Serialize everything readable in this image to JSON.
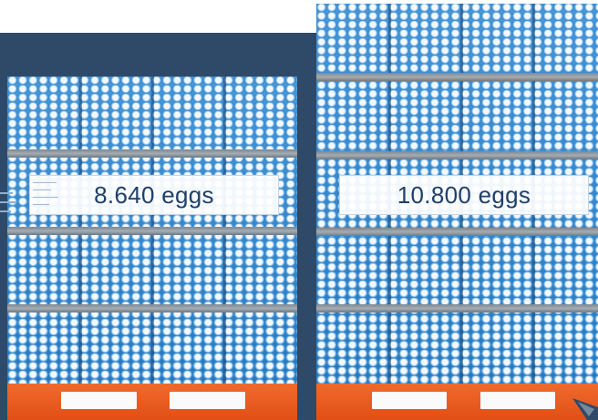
{
  "pallets": [
    {
      "label": "8.640 eggs"
    },
    {
      "label": "10.800 eggs"
    }
  ],
  "colors": {
    "backdrop": "#2e4a68",
    "egg_tray": "#2f86cf",
    "tray_band": "#8f99a2",
    "pallet_base": "#e8591e",
    "label_text": "#1f3f6a"
  },
  "icons": {
    "corner": "triangle-mark"
  }
}
